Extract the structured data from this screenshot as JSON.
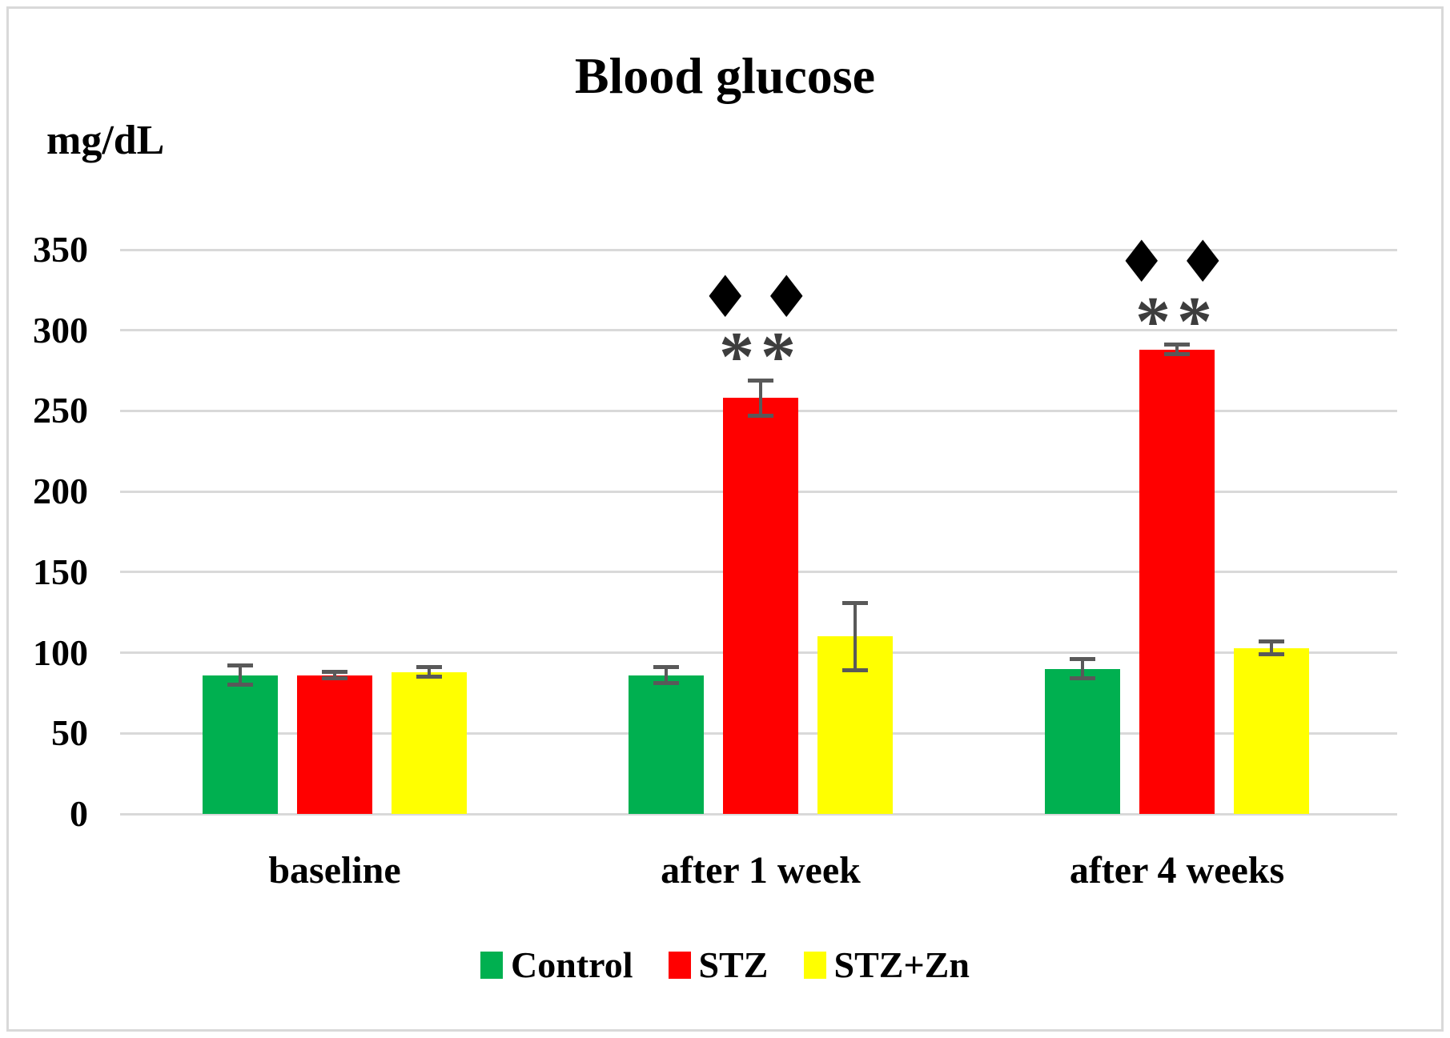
{
  "chart_data": {
    "type": "bar",
    "title": "Blood glucose",
    "ylabel": "mg/dL",
    "xlabel": "",
    "categories": [
      "baseline",
      "after 1 week",
      "after 4 weeks"
    ],
    "series": [
      {
        "name": "Control",
        "color": "#00b050",
        "values": [
          86,
          86,
          90
        ],
        "errors": [
          6,
          5,
          6
        ],
        "annotations": [
          null,
          null,
          null
        ]
      },
      {
        "name": "STZ",
        "color": "#ff0000",
        "values": [
          86,
          258,
          288
        ],
        "errors": [
          2,
          11,
          3
        ],
        "annotations": [
          null,
          [
            "♦♦",
            "**"
          ],
          [
            "♦♦",
            "**"
          ]
        ]
      },
      {
        "name": "STZ+Zn",
        "color": "#ffff00",
        "values": [
          88,
          110,
          103
        ],
        "errors": [
          3,
          21,
          4
        ],
        "annotations": [
          null,
          null,
          null
        ]
      }
    ],
    "ylim": [
      0,
      350
    ],
    "yticks": [
      0,
      50,
      100,
      150,
      200,
      250,
      300,
      350
    ],
    "grid": true,
    "legend_position": "bottom"
  },
  "colors": {
    "gridline": "#d9d9d9",
    "frame_border": "#d9d9d9",
    "error_bar": "#595959",
    "diamond_marker": "#000000",
    "asterisk_marker": "#3d3d3d",
    "text": "#000000",
    "background": "#ffffff"
  }
}
